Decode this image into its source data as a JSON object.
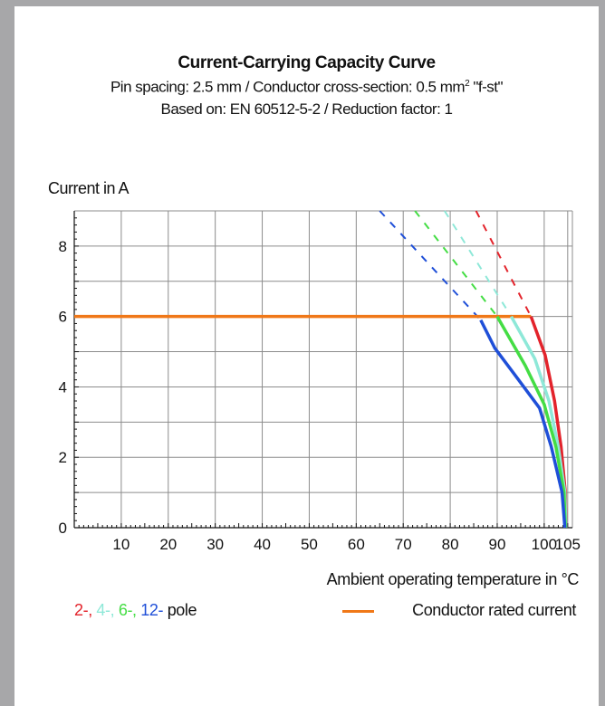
{
  "chart_data": {
    "type": "line",
    "title": "Current-Carrying Capacity Curve",
    "subtitle_parts": {
      "line1_prefix": "Pin spacing: 2.5 mm / Conductor cross-section: 0.5 mm",
      "line1_sup": "2",
      "line1_suffix": " \"f-st\"",
      "line2": "Based on: EN 60512-5-2 / Reduction factor: 1"
    },
    "ylabel": "Current in A",
    "xlabel": "Ambient operating temperature in °C",
    "xlim": [
      0,
      106
    ],
    "ylim": [
      0,
      9
    ],
    "xticks": [
      10,
      20,
      30,
      40,
      50,
      60,
      70,
      80,
      90,
      100,
      105
    ],
    "yticks": [
      0,
      2,
      4,
      6,
      8
    ],
    "grid": true,
    "legend": {
      "poles": [
        "2-",
        "4-",
        "6-",
        "12-"
      ],
      "poles_suffix": "pole",
      "rated": "Conductor rated current"
    },
    "rated_current": {
      "value": 6,
      "color": "#f07818"
    },
    "series": [
      {
        "poles": "2-",
        "color": "#e3232b",
        "dashed": [
          [
            85.5,
            9
          ],
          [
            97.2,
            6
          ]
        ],
        "solid": [
          [
            97.2,
            6
          ],
          [
            100.2,
            4.9
          ],
          [
            102.2,
            3.6
          ],
          [
            103.6,
            2.3
          ],
          [
            104.5,
            1.0
          ],
          [
            104.6,
            0
          ]
        ]
      },
      {
        "poles": "4-",
        "color": "#8ee8d8",
        "dashed": [
          [
            78.8,
            9
          ],
          [
            93,
            6
          ]
        ],
        "solid": [
          [
            93,
            6
          ],
          [
            98,
            4.8
          ],
          [
            101,
            3.6
          ],
          [
            103,
            2.3
          ],
          [
            104.4,
            1.0
          ],
          [
            104.6,
            0
          ]
        ]
      },
      {
        "poles": "6-",
        "color": "#44dd44",
        "dashed": [
          [
            72.5,
            9
          ],
          [
            90,
            6
          ]
        ],
        "solid": [
          [
            90,
            6
          ],
          [
            96,
            4.6
          ],
          [
            100,
            3.5
          ],
          [
            102.5,
            2.3
          ],
          [
            104.2,
            1.0
          ],
          [
            104.5,
            0
          ]
        ]
      },
      {
        "poles": "12-",
        "color": "#1f4fd8",
        "dashed": [
          [
            65,
            9
          ],
          [
            86.5,
            5.9
          ]
        ],
        "solid": [
          [
            86.5,
            5.9
          ],
          [
            89.5,
            5.1
          ],
          [
            94,
            4.3
          ],
          [
            99,
            3.4
          ],
          [
            101.5,
            2.3
          ],
          [
            103.8,
            1.0
          ],
          [
            104.4,
            0
          ]
        ]
      }
    ]
  }
}
